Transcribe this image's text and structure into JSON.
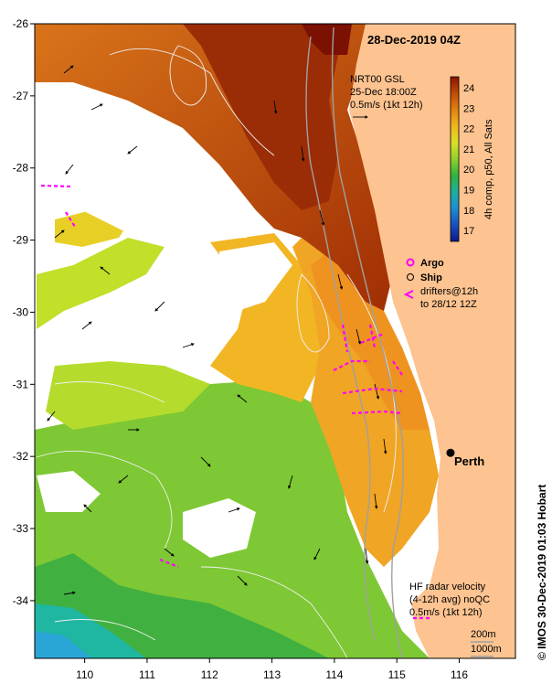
{
  "title": "28-Dec-2019 04Z",
  "credit": "© IMOS 30-Dec-2019 01:03 Hobart",
  "map": {
    "lon_range": [
      109.2,
      116.9
    ],
    "lat_range": [
      -34.8,
      -26.0
    ],
    "x_ticks": [
      "110",
      "111",
      "112",
      "113",
      "114",
      "115",
      "116"
    ],
    "y_ticks": [
      "-26",
      "-27",
      "-28",
      "-29",
      "-30",
      "-31",
      "-32",
      "-33",
      "-34"
    ],
    "land_color": "#fdc390",
    "no_data_color": "#ffffff"
  },
  "gsl_note": {
    "line1": "NRT00 GSL",
    "line2": "25-Dec 18:00Z",
    "line3": "0.5m/s (1kt 12h)"
  },
  "colorbar": {
    "label": "4h comp, p50, All Sats",
    "ticks": [
      "24",
      "23",
      "22",
      "21",
      "20",
      "19",
      "18",
      "17"
    ],
    "stops": [
      "#8b1400",
      "#c24a06",
      "#e3820f",
      "#f2b71c",
      "#d9df2a",
      "#8fd12a",
      "#2fb33f",
      "#1cb0a0",
      "#1c8ed6",
      "#1a4fc0",
      "#0b1a86"
    ]
  },
  "legend": {
    "argo": "Argo",
    "ship": "Ship",
    "drifters_line1": "drifters@12h",
    "drifters_line2": "to 28/12 12Z"
  },
  "city": {
    "name": "Perth",
    "lon": 115.86,
    "lat": -31.95
  },
  "hf_note": {
    "line1": "HF radar velocity",
    "line2": "(4-12h avg) noQC",
    "line3": "0.5m/s (1kt 12h)"
  },
  "isobaths": [
    "200m",
    "1000m"
  ],
  "accent": {
    "drifter": "#ff00ff",
    "isobath": "#a0a0a0",
    "contour": "#f0f0f0"
  }
}
